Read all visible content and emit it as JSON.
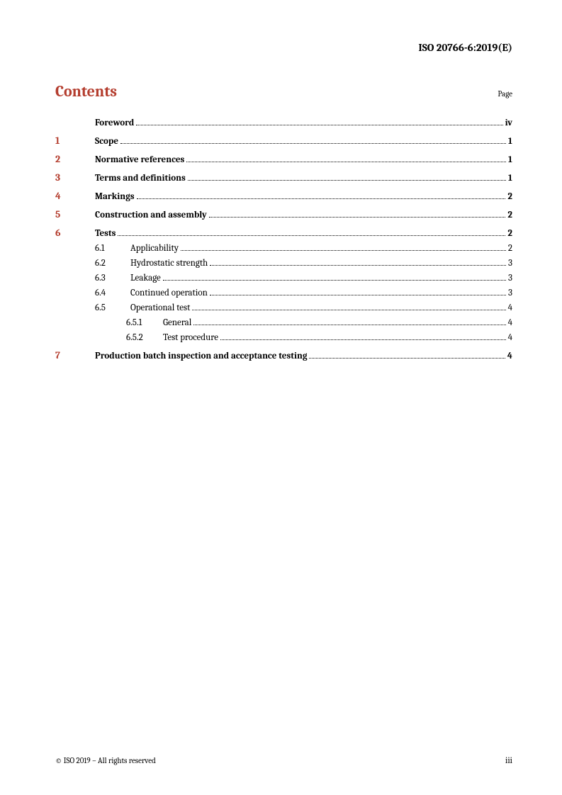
{
  "header": {
    "doc_id": "ISO 20766-6:2019(E)"
  },
  "contents": {
    "title": "Contents",
    "page_label": "Page"
  },
  "toc": [
    {
      "type": "top",
      "num": "",
      "title": "Foreword",
      "page": "iv",
      "bold": true
    },
    {
      "type": "spacer"
    },
    {
      "type": "top",
      "num": "1",
      "title": "Scope",
      "page": "1",
      "bold": true
    },
    {
      "type": "spacer"
    },
    {
      "type": "top",
      "num": "2",
      "title": "Normative references",
      "page": "1",
      "bold": true
    },
    {
      "type": "spacer"
    },
    {
      "type": "top",
      "num": "3",
      "title": "Terms and definitions",
      "page": "1",
      "bold": true
    },
    {
      "type": "spacer"
    },
    {
      "type": "top",
      "num": "4",
      "title": "Markings",
      "page": "2",
      "bold": true
    },
    {
      "type": "spacer"
    },
    {
      "type": "top",
      "num": "5",
      "title": "Construction and assembly",
      "page": "2",
      "bold": true
    },
    {
      "type": "spacer"
    },
    {
      "type": "top",
      "num": "6",
      "title": "Tests",
      "page": "2",
      "bold": true
    },
    {
      "type": "sub",
      "num": "6.1",
      "title": "Applicability",
      "page": "2"
    },
    {
      "type": "sub",
      "num": "6.2",
      "title": "Hydrostatic strength",
      "page": "3"
    },
    {
      "type": "sub",
      "num": "6.3",
      "title": "Leakage",
      "page": "3"
    },
    {
      "type": "sub",
      "num": "6.4",
      "title": "Continued operation",
      "page": "3"
    },
    {
      "type": "sub",
      "num": "6.5",
      "title": "Operational test",
      "page": "4"
    },
    {
      "type": "subsub",
      "num": "6.5.1",
      "title": "General",
      "page": "4"
    },
    {
      "type": "subsub",
      "num": "6.5.2",
      "title": "Test procedure",
      "page": "4"
    },
    {
      "type": "spacer"
    },
    {
      "type": "top",
      "num": "7",
      "title": "Production batch inspection and acceptance testing",
      "page": "4",
      "bold": true
    }
  ],
  "footer": {
    "copyright": "© ISO 2019 – All rights reserved",
    "page_number": "iii"
  }
}
